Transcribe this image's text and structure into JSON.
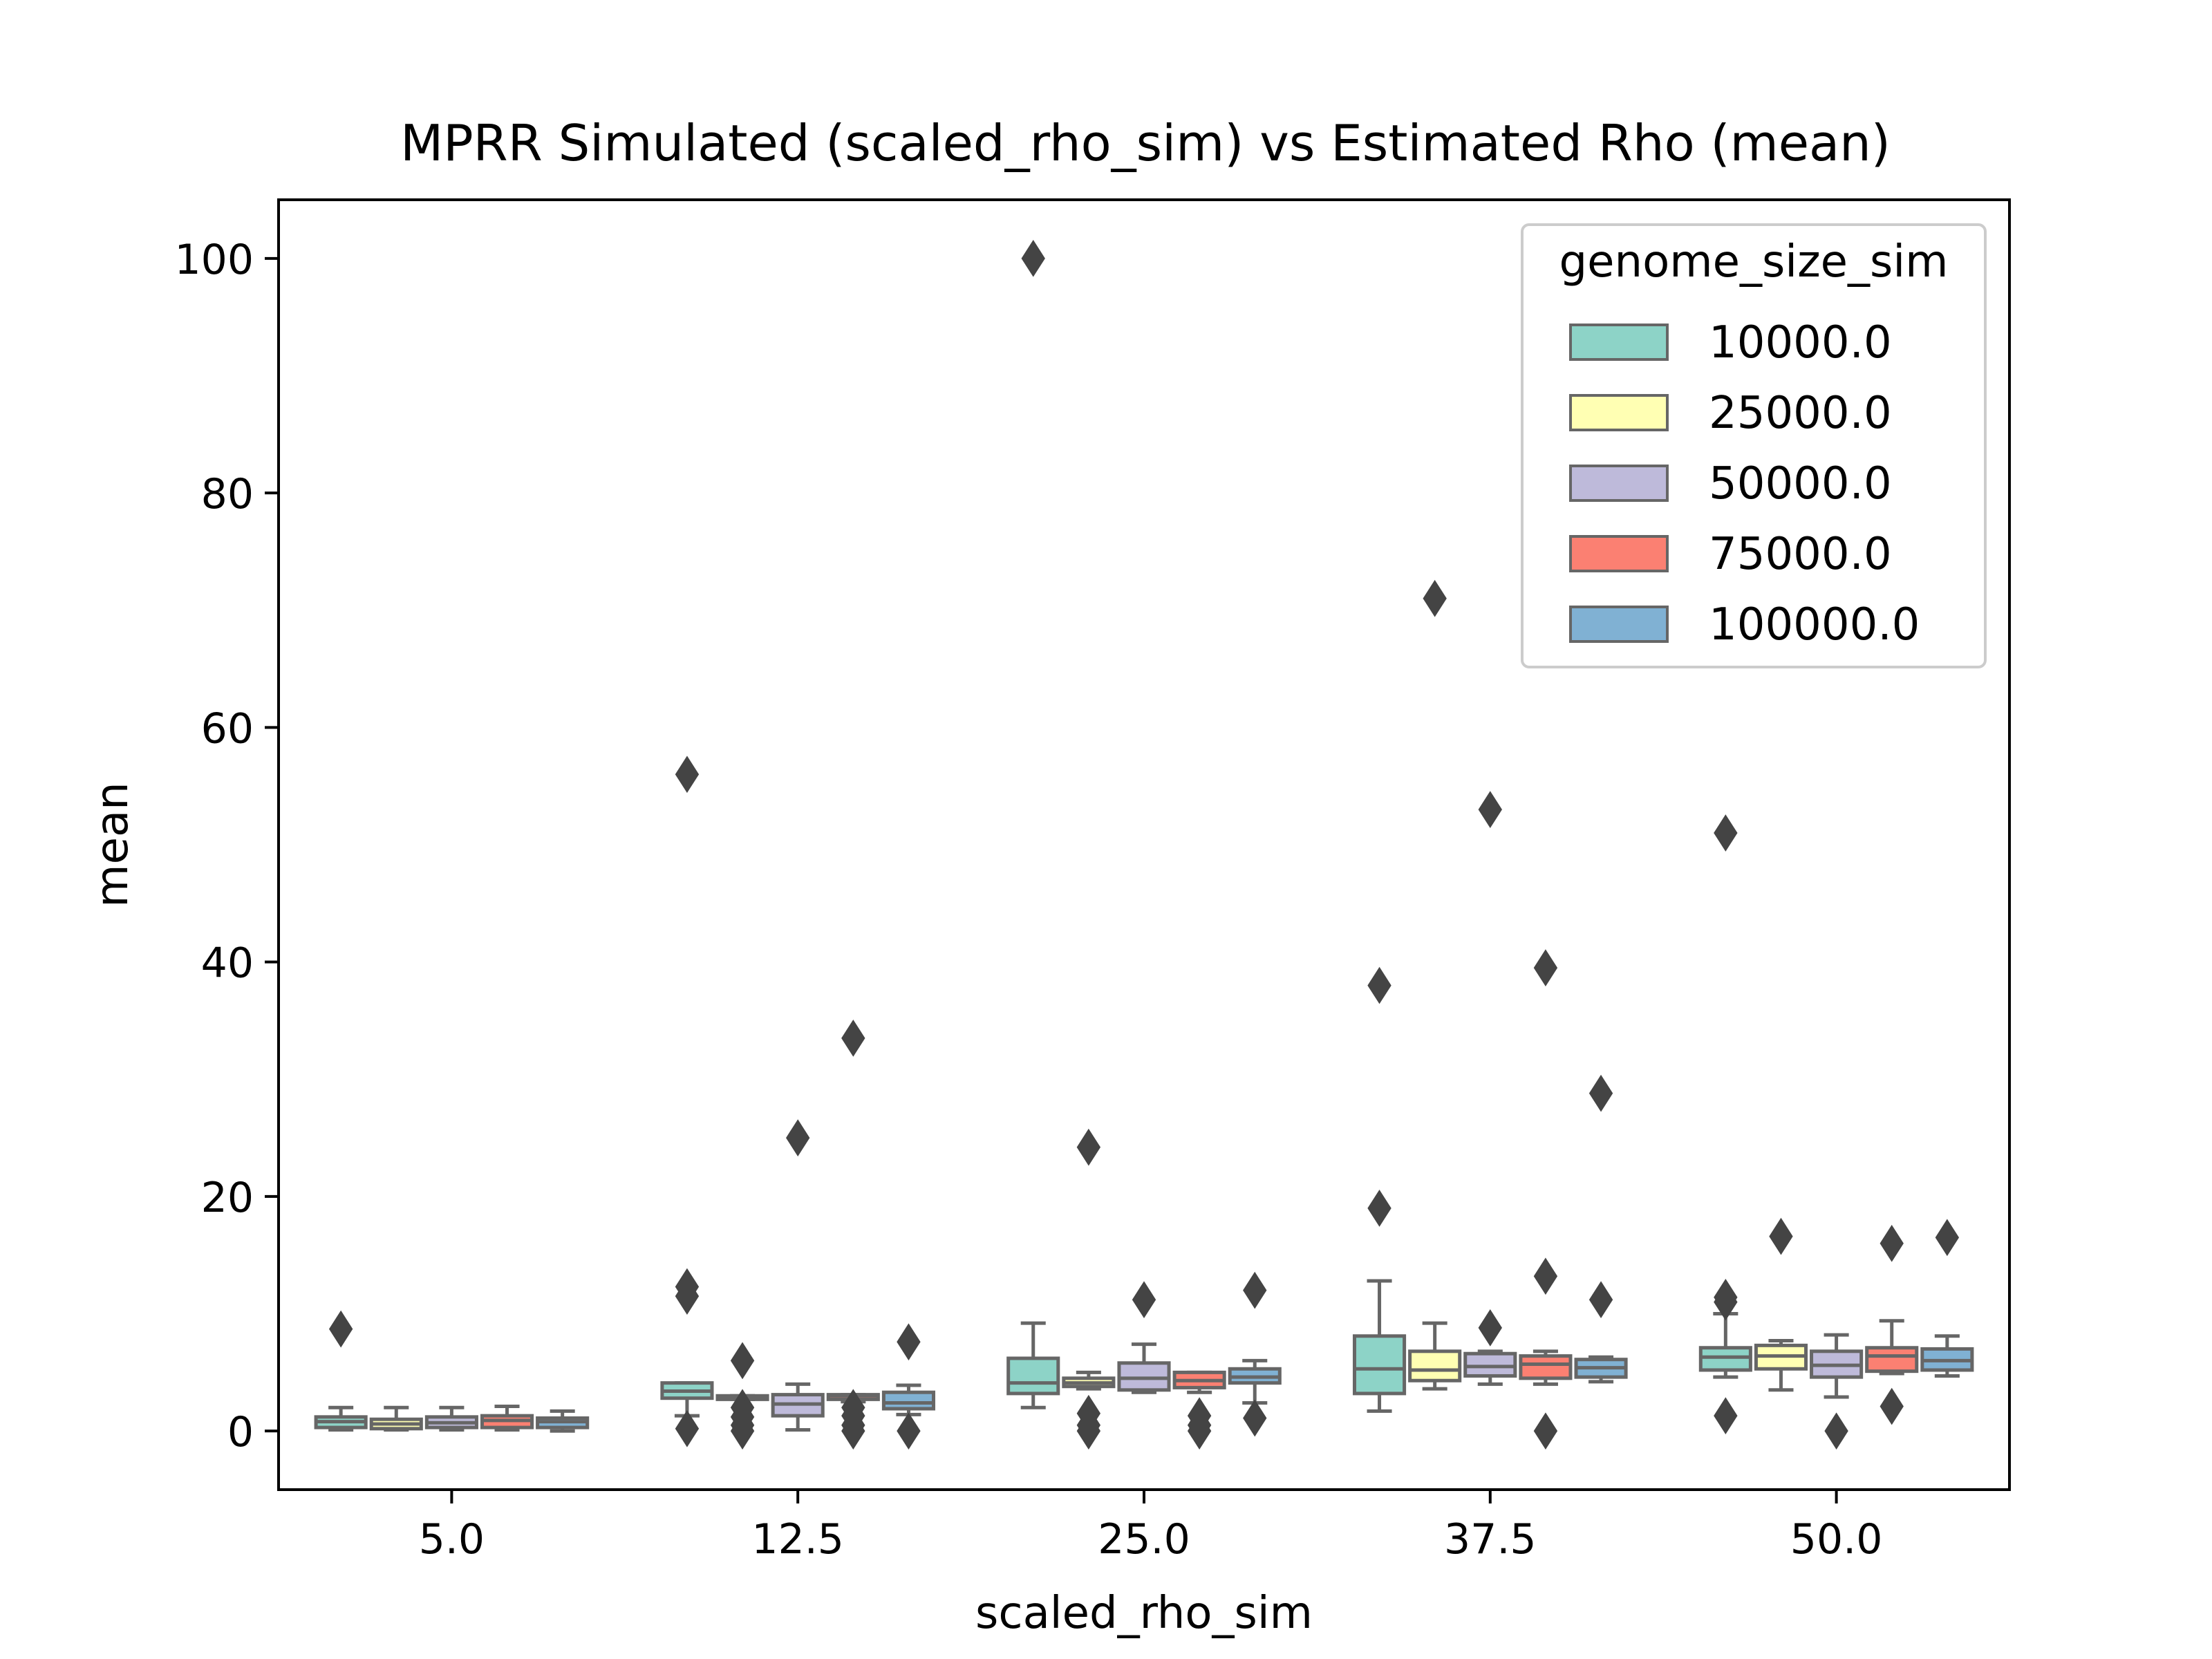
{
  "chart_data": {
    "type": "box",
    "title": "MPRR Simulated (scaled_rho_sim) vs Estimated Rho (mean)",
    "xlabel": "scaled_rho_sim",
    "ylabel": "mean",
    "ylim": [
      -5,
      105
    ],
    "yticks": [
      0,
      20,
      40,
      60,
      80,
      100
    ],
    "categories": [
      "5.0",
      "12.5",
      "25.0",
      "37.5",
      "50.0"
    ],
    "grid": false,
    "legend": {
      "title": "genome_size_sim",
      "position": "top-right"
    },
    "series": [
      {
        "name": "10000.0",
        "color": "#8dd3c7",
        "boxes": [
          {
            "whislo": 0.1,
            "q1": 0.3,
            "med": 0.8,
            "q3": 1.2,
            "whishi": 2.0,
            "fliers": [
              8.7
            ]
          },
          {
            "whislo": 1.3,
            "q1": 2.8,
            "med": 3.4,
            "q3": 4.1,
            "whishi": 4.1,
            "fliers": [
              56.0,
              12.3,
              11.5,
              0.2
            ]
          },
          {
            "whislo": 2.0,
            "q1": 3.2,
            "med": 4.1,
            "q3": 6.2,
            "whishi": 9.2,
            "fliers": [
              100.0
            ]
          },
          {
            "whislo": 1.7,
            "q1": 3.2,
            "med": 5.3,
            "q3": 8.1,
            "whishi": 12.8,
            "fliers": [
              38.0,
              19.0
            ]
          },
          {
            "whislo": 4.6,
            "q1": 5.2,
            "med": 6.3,
            "q3": 7.1,
            "whishi": 10.0,
            "fliers": [
              51.0,
              11.4,
              11.0,
              1.3
            ]
          }
        ]
      },
      {
        "name": "25000.0",
        "color": "#ffffb3",
        "boxes": [
          {
            "whislo": 0.1,
            "q1": 0.2,
            "med": 0.6,
            "q3": 1.0,
            "whishi": 2.0,
            "fliers": []
          },
          {
            "whislo": 2.7,
            "q1": 2.7,
            "med": 2.9,
            "q3": 3.0,
            "whishi": 3.0,
            "fliers": [
              6.0,
              2.0,
              1.2,
              0.5,
              0.0
            ]
          },
          {
            "whislo": 3.6,
            "q1": 3.8,
            "med": 4.1,
            "q3": 4.5,
            "whishi": 5.0,
            "fliers": [
              24.2,
              1.5,
              0.5,
              0.0
            ]
          },
          {
            "whislo": 3.6,
            "q1": 4.3,
            "med": 5.2,
            "q3": 6.8,
            "whishi": 9.2,
            "fliers": [
              71.0
            ]
          },
          {
            "whislo": 3.5,
            "q1": 5.3,
            "med": 6.4,
            "q3": 7.3,
            "whishi": 7.7,
            "fliers": [
              16.6
            ]
          }
        ]
      },
      {
        "name": "50000.0",
        "color": "#bebada",
        "boxes": [
          {
            "whislo": 0.1,
            "q1": 0.3,
            "med": 0.7,
            "q3": 1.2,
            "whishi": 2.0,
            "fliers": []
          },
          {
            "whislo": 0.1,
            "q1": 1.3,
            "med": 2.3,
            "q3": 3.1,
            "whishi": 4.0,
            "fliers": [
              25.0
            ]
          },
          {
            "whislo": 3.3,
            "q1": 3.5,
            "med": 4.5,
            "q3": 5.8,
            "whishi": 7.4,
            "fliers": [
              11.2
            ]
          },
          {
            "whislo": 4.0,
            "q1": 4.7,
            "med": 5.5,
            "q3": 6.6,
            "whishi": 6.8,
            "fliers": [
              53.0,
              8.8
            ]
          },
          {
            "whislo": 2.9,
            "q1": 4.6,
            "med": 5.6,
            "q3": 6.8,
            "whishi": 8.2,
            "fliers": [
              0.0
            ]
          }
        ]
      },
      {
        "name": "75000.0",
        "color": "#fb8072",
        "boxes": [
          {
            "whislo": 0.1,
            "q1": 0.3,
            "med": 0.9,
            "q3": 1.3,
            "whishi": 2.1,
            "fliers": []
          },
          {
            "whislo": 2.5,
            "q1": 2.7,
            "med": 3.0,
            "q3": 3.1,
            "whishi": 3.1,
            "fliers": [
              33.5,
              2.0,
              1.3,
              0.5,
              0.0
            ]
          },
          {
            "whislo": 3.3,
            "q1": 3.7,
            "med": 4.3,
            "q3": 5.0,
            "whishi": 5.0,
            "fliers": [
              1.3,
              0.5,
              0.0
            ]
          },
          {
            "whislo": 4.0,
            "q1": 4.5,
            "med": 5.7,
            "q3": 6.4,
            "whishi": 6.8,
            "fliers": [
              39.5,
              13.2,
              0.0
            ]
          },
          {
            "whislo": 4.9,
            "q1": 5.1,
            "med": 6.4,
            "q3": 7.1,
            "whishi": 9.4,
            "fliers": [
              16.0,
              2.1
            ]
          }
        ]
      },
      {
        "name": "100000.0",
        "color": "#80b1d3",
        "boxes": [
          {
            "whislo": 0.0,
            "q1": 0.3,
            "med": 0.8,
            "q3": 1.1,
            "whishi": 1.7,
            "fliers": []
          },
          {
            "whislo": 1.4,
            "q1": 1.9,
            "med": 2.4,
            "q3": 3.3,
            "whishi": 3.9,
            "fliers": [
              7.6,
              0.0
            ]
          },
          {
            "whislo": 2.4,
            "q1": 4.1,
            "med": 4.6,
            "q3": 5.3,
            "whishi": 6.0,
            "fliers": [
              12.0,
              1.1
            ]
          },
          {
            "whislo": 4.2,
            "q1": 4.6,
            "med": 5.4,
            "q3": 6.1,
            "whishi": 6.3,
            "fliers": [
              28.8,
              11.2
            ]
          },
          {
            "whislo": 4.7,
            "q1": 5.2,
            "med": 6.0,
            "q3": 7.0,
            "whishi": 8.1,
            "fliers": [
              16.5
            ]
          }
        ]
      }
    ]
  }
}
